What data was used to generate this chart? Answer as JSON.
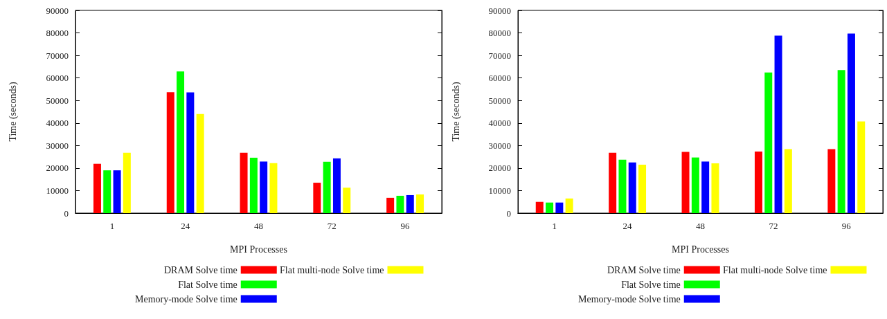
{
  "chart_data": [
    {
      "type": "bar",
      "xlabel": "MPI Processes",
      "ylabel": "Time (seconds)",
      "categories": [
        "1",
        "24",
        "48",
        "72",
        "96"
      ],
      "ylim": [
        0,
        90000
      ],
      "yticks": [
        0,
        10000,
        20000,
        30000,
        40000,
        50000,
        60000,
        70000,
        80000,
        90000
      ],
      "grid": false,
      "legend": "bottom",
      "series": [
        {
          "name": "DRAM Solve time",
          "color": "#ff0000",
          "values": [
            21900,
            53700,
            26800,
            13500,
            6800
          ]
        },
        {
          "name": "Flat Solve time",
          "color": "#00ff00",
          "values": [
            19000,
            62900,
            24600,
            22800,
            7700
          ]
        },
        {
          "name": "Memory-mode Solve time",
          "color": "#0000ff",
          "values": [
            19000,
            53600,
            22900,
            24300,
            8000
          ]
        },
        {
          "name": "Flat multi-node Solve time",
          "color": "#ffff00",
          "values": [
            26800,
            44000,
            22200,
            11300,
            8300
          ]
        }
      ]
    },
    {
      "type": "bar",
      "xlabel": "MPI Processes",
      "ylabel": "Time (seconds)",
      "categories": [
        "1",
        "24",
        "48",
        "72",
        "96"
      ],
      "ylim": [
        0,
        90000
      ],
      "yticks": [
        0,
        10000,
        20000,
        30000,
        40000,
        50000,
        60000,
        70000,
        80000,
        90000
      ],
      "grid": false,
      "legend": "bottom",
      "series": [
        {
          "name": "DRAM Solve time",
          "color": "#ff0000",
          "values": [
            5000,
            26800,
            27200,
            27300,
            28400
          ]
        },
        {
          "name": "Flat Solve time",
          "color": "#00ff00",
          "values": [
            4700,
            23700,
            24700,
            62400,
            63500
          ]
        },
        {
          "name": "Memory-mode Solve time",
          "color": "#0000ff",
          "values": [
            4700,
            22500,
            22900,
            78800,
            79700
          ]
        },
        {
          "name": "Flat multi-node Solve time",
          "color": "#ffff00",
          "values": [
            6500,
            21500,
            22100,
            28400,
            40700
          ]
        }
      ]
    }
  ]
}
